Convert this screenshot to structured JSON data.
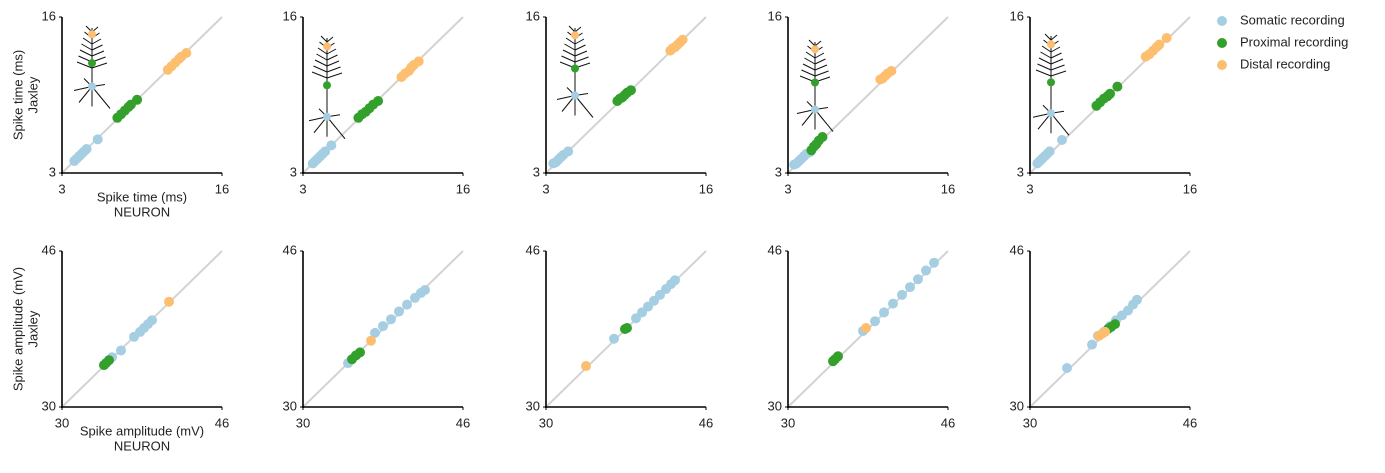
{
  "chart_data": [
    {
      "type": "scatter",
      "xlim": [
        3,
        16
      ],
      "ylim": [
        3,
        16
      ],
      "xticks": [
        3,
        16
      ],
      "yticks": [
        3,
        16
      ],
      "xlabel": [
        "Spike time (ms)",
        "NEURON"
      ],
      "ylabel": [
        "Spike time (ms)",
        "Jaxley"
      ],
      "legend": "right",
      "series": [
        {
          "name": "Somatic recording",
          "color": "#a6cee3",
          "x": [
            4.0,
            4.2,
            4.4,
            4.6,
            4.8,
            5.0,
            5.9
          ],
          "values": [
            4.0,
            4.2,
            4.4,
            4.6,
            4.8,
            5.0,
            5.8
          ]
        },
        {
          "name": "Proximal recording",
          "color": "#33a02c",
          "x": [
            7.5,
            7.8,
            8.1,
            8.4,
            8.6,
            9.1
          ],
          "values": [
            7.6,
            7.9,
            8.2,
            8.5,
            8.7,
            9.1
          ]
        },
        {
          "name": "Distal recording",
          "color": "#fdbf6f",
          "x": [
            11.6,
            11.9,
            12.2,
            12.5,
            12.7,
            13.1
          ],
          "values": [
            11.6,
            11.9,
            12.2,
            12.5,
            12.7,
            13.0
          ]
        }
      ]
    },
    {
      "type": "scatter",
      "xlim": [
        3,
        16
      ],
      "ylim": [
        3,
        16
      ],
      "xticks": [
        3,
        16
      ],
      "yticks": [
        3,
        16
      ],
      "series": [
        {
          "color": "#a6cee3",
          "x": [
            3.8,
            4.0,
            4.2,
            4.4,
            4.6,
            4.8,
            5.3
          ],
          "values": [
            3.8,
            4.0,
            4.2,
            4.4,
            4.6,
            4.8,
            5.3
          ]
        },
        {
          "color": "#33a02c",
          "x": [
            7.5,
            7.8,
            8.1,
            8.4,
            8.7,
            9.1
          ],
          "values": [
            7.6,
            7.9,
            8.1,
            8.4,
            8.7,
            9.0
          ]
        },
        {
          "color": "#fdbf6f",
          "x": [
            11.0,
            11.3,
            11.6,
            11.8,
            12.0,
            12.4
          ],
          "values": [
            11.0,
            11.3,
            11.5,
            11.8,
            12.0,
            12.3
          ]
        }
      ]
    },
    {
      "type": "scatter",
      "xlim": [
        3,
        16
      ],
      "ylim": [
        3,
        16
      ],
      "xticks": [
        3,
        16
      ],
      "yticks": [
        3,
        16
      ],
      "series": [
        {
          "color": "#a6cee3",
          "x": [
            3.6,
            3.8,
            4.0,
            4.2,
            4.4,
            4.8
          ],
          "values": [
            3.8,
            3.9,
            4.1,
            4.3,
            4.5,
            4.8
          ]
        },
        {
          "color": "#33a02c",
          "x": [
            8.8,
            9.0,
            9.2,
            9.4,
            9.6,
            9.9
          ],
          "values": [
            9.0,
            9.2,
            9.3,
            9.5,
            9.7,
            9.9
          ]
        },
        {
          "color": "#fdbf6f",
          "x": [
            13.1,
            13.3,
            13.5,
            13.7,
            13.9,
            14.1
          ],
          "values": [
            13.2,
            13.4,
            13.5,
            13.7,
            13.9,
            14.1
          ]
        }
      ]
    },
    {
      "type": "scatter",
      "xlim": [
        3,
        16
      ],
      "ylim": [
        3,
        16
      ],
      "xticks": [
        3,
        16
      ],
      "yticks": [
        3,
        16
      ],
      "series": [
        {
          "color": "#a6cee3",
          "x": [
            3.5,
            3.7,
            3.9,
            4.1,
            4.3,
            4.5,
            4.8
          ],
          "values": [
            3.7,
            3.8,
            4.0,
            4.2,
            4.4,
            4.6,
            4.75
          ]
        },
        {
          "color": "#33a02c",
          "x": [
            4.9,
            5.1,
            5.3,
            5.5,
            5.8
          ],
          "values": [
            4.9,
            5.2,
            5.4,
            5.7,
            6.0
          ]
        },
        {
          "color": "#fdbf6f",
          "x": [
            10.5,
            10.7,
            10.9,
            11.1,
            11.4
          ],
          "values": [
            10.8,
            10.9,
            11.1,
            11.3,
            11.5
          ]
        }
      ]
    },
    {
      "type": "scatter",
      "xlim": [
        3,
        16
      ],
      "ylim": [
        3,
        16
      ],
      "xticks": [
        3,
        16
      ],
      "yticks": [
        3,
        16
      ],
      "series": [
        {
          "color": "#a6cee3",
          "x": [
            3.6,
            3.8,
            4.0,
            4.2,
            4.4,
            4.6,
            5.6
          ],
          "values": [
            3.8,
            4.0,
            4.2,
            4.4,
            4.6,
            4.8,
            5.75
          ]
        },
        {
          "color": "#33a02c",
          "x": [
            8.4,
            8.7,
            9.0,
            9.3,
            9.5,
            10.1
          ],
          "values": [
            8.6,
            8.9,
            9.2,
            9.4,
            9.6,
            10.2
          ]
        },
        {
          "color": "#fdbf6f",
          "x": [
            12.4,
            12.7,
            13.0,
            13.3,
            13.5,
            14.1
          ],
          "values": [
            12.7,
            12.9,
            13.2,
            13.5,
            13.7,
            14.25
          ]
        }
      ]
    },
    {
      "type": "scatter",
      "xlim": [
        30,
        46
      ],
      "ylim": [
        30,
        46
      ],
      "xticks": [
        30,
        46
      ],
      "yticks": [
        30,
        46
      ],
      "xlabel": [
        "Spike amplitude (mV)",
        "NEURON"
      ],
      "ylabel": [
        "Spike amplitude (mV)",
        "Jaxley"
      ],
      "series": [
        {
          "color": "#a6cee3",
          "x": [
            35.0,
            35.9,
            37.2,
            37.8,
            38.2,
            38.6,
            39.0
          ],
          "values": [
            35.1,
            35.8,
            37.2,
            37.7,
            38.1,
            38.5,
            38.9
          ]
        },
        {
          "color": "#33a02c",
          "x": [
            34.2,
            34.4,
            34.7
          ],
          "values": [
            34.3,
            34.5,
            34.8
          ]
        },
        {
          "color": "#fdbf6f",
          "x": [
            40.7
          ],
          "values": [
            40.8
          ]
        }
      ]
    },
    {
      "type": "scatter",
      "xlim": [
        30,
        46
      ],
      "ylim": [
        30,
        46
      ],
      "xticks": [
        30,
        46
      ],
      "yticks": [
        30,
        46
      ],
      "series": [
        {
          "color": "#a6cee3",
          "x": [
            34.5,
            37.2,
            38.0,
            38.8,
            39.6,
            40.4,
            41.2,
            41.8,
            42.2
          ],
          "values": [
            34.5,
            37.6,
            38.3,
            39.0,
            39.8,
            40.5,
            41.2,
            41.7,
            42.0
          ]
        },
        {
          "color": "#33a02c",
          "x": [
            34.9,
            35.3,
            35.7
          ],
          "values": [
            34.9,
            35.3,
            35.6
          ]
        },
        {
          "color": "#fdbf6f",
          "x": [
            36.8
          ],
          "values": [
            36.8
          ]
        }
      ]
    },
    {
      "type": "scatter",
      "xlim": [
        30,
        46
      ],
      "ylim": [
        30,
        46
      ],
      "xticks": [
        30,
        46
      ],
      "yticks": [
        30,
        46
      ],
      "series": [
        {
          "color": "#a6cee3",
          "x": [
            36.8,
            39.0,
            39.6,
            40.2,
            40.8,
            41.4,
            42.0,
            42.5,
            42.9
          ],
          "values": [
            37.0,
            39.1,
            39.7,
            40.3,
            40.9,
            41.5,
            42.1,
            42.6,
            43.0
          ]
        },
        {
          "color": "#33a02c",
          "x": [
            37.9,
            38.1
          ],
          "values": [
            38.0,
            38.1
          ]
        },
        {
          "color": "#fdbf6f",
          "x": [
            34.0
          ],
          "values": [
            34.2
          ]
        }
      ]
    },
    {
      "type": "scatter",
      "xlim": [
        30,
        46
      ],
      "ylim": [
        30,
        46
      ],
      "xticks": [
        30,
        46
      ],
      "yticks": [
        30,
        46
      ],
      "series": [
        {
          "color": "#a6cee3",
          "x": [
            37.5,
            38.7,
            39.6,
            40.5,
            41.4,
            42.2,
            43.0,
            43.8,
            44.6
          ],
          "values": [
            37.8,
            38.8,
            39.7,
            40.6,
            41.5,
            42.3,
            43.1,
            44.0,
            44.8
          ]
        },
        {
          "color": "#33a02c",
          "x": [
            34.5,
            34.7,
            35.0
          ],
          "values": [
            34.7,
            34.9,
            35.2
          ]
        },
        {
          "color": "#fdbf6f",
          "x": [
            37.8
          ],
          "values": [
            38.1
          ]
        }
      ]
    },
    {
      "type": "scatter",
      "xlim": [
        30,
        46
      ],
      "ylim": [
        30,
        46
      ],
      "xticks": [
        30,
        46
      ],
      "yticks": [
        30,
        46
      ],
      "series": [
        {
          "color": "#a6cee3",
          "x": [
            33.7,
            36.2,
            36.8,
            37.4,
            38.0,
            38.6,
            39.2,
            39.8,
            40.3,
            40.7
          ],
          "values": [
            34.0,
            36.4,
            37.3,
            37.7,
            38.3,
            38.9,
            39.4,
            39.9,
            40.5,
            41.0
          ]
        },
        {
          "color": "#33a02c",
          "x": [
            37.8,
            38.1,
            38.5
          ],
          "values": [
            38.0,
            38.2,
            38.5
          ]
        },
        {
          "color": "#fdbf6f",
          "x": [
            36.9,
            37.2,
            37.5
          ],
          "values": [
            37.3,
            37.5,
            37.7
          ]
        }
      ]
    }
  ]
}
